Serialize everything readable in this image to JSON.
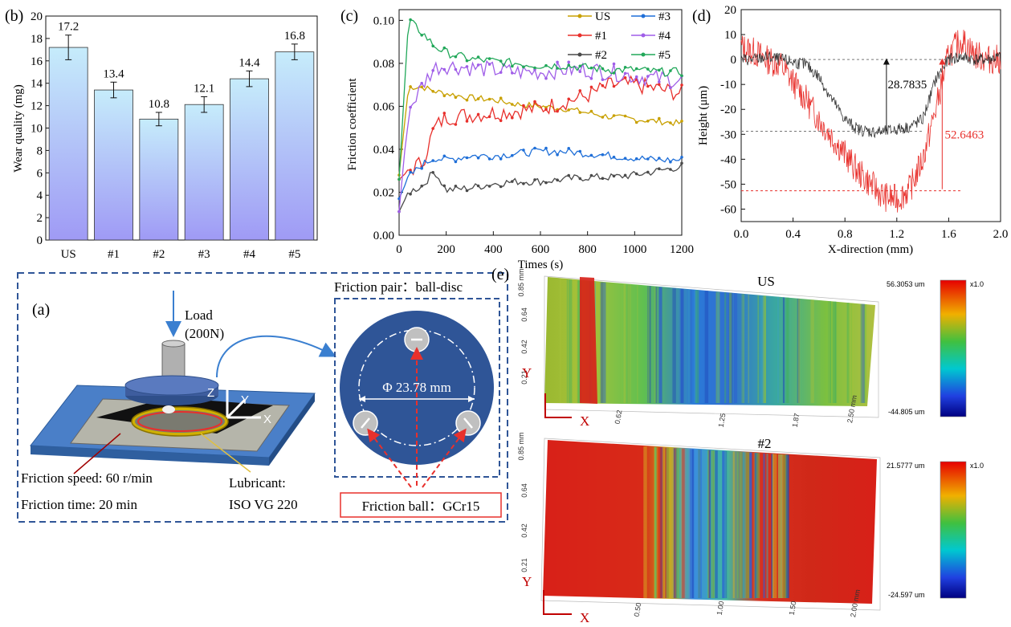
{
  "panel_b": {
    "label": "(b)",
    "ylabel": "Wear quality (mg)",
    "yticks": [
      "0",
      "2",
      "4",
      "6",
      "8",
      "10",
      "12",
      "14",
      "16",
      "18",
      "20"
    ]
  },
  "panel_c": {
    "label": "(c)",
    "xlabel": "Times (s)",
    "ylabel": "Friction coefficient",
    "xticks": [
      "0",
      "200",
      "400",
      "600",
      "800",
      "1000",
      "1200"
    ],
    "yticks": [
      "0.00",
      "0.02",
      "0.04",
      "0.06",
      "0.08",
      "0.10"
    ],
    "legend": [
      "US",
      "#1",
      "#2",
      "#3",
      "#4",
      "#5"
    ]
  },
  "panel_d": {
    "label": "(d)",
    "xlabel": "X-direction (mm)",
    "ylabel": "Height (μm)",
    "xticks": [
      "0.0",
      "0.4",
      "0.8",
      "1.2",
      "1.6",
      "2.0"
    ],
    "yticks": [
      "20",
      "10",
      "0",
      "-10",
      "-20",
      "-30",
      "-40",
      "-50",
      "-60"
    ],
    "annot_black": "28.7835",
    "annot_red": "52.6463"
  },
  "panel_a": {
    "label": "(a)",
    "load": "Load",
    "load_value": "(200N)",
    "friction_pair": "Friction pair：ball-disc",
    "diameter": "Φ 23.78 mm",
    "speed": "Friction speed: 60 r/min",
    "time": "Friction time: 20 min",
    "lubricant": "Lubricant:",
    "lubricant_value": "ISO VG 220",
    "ball": "Friction ball：GCr15",
    "axis_x": "X",
    "axis_y": "Y",
    "axis_z": "Z"
  },
  "panel_e": {
    "label": "(e)",
    "top_title": "US",
    "top_max": "56.3053 um",
    "top_min": "-44.805 um",
    "top_scale": "x1.0",
    "top_yticks": [
      "0.85 mm",
      "0.64",
      "0.42",
      "0.21"
    ],
    "top_xticks": [
      "0.62",
      "1.25",
      "1.87",
      "2.50 mm"
    ],
    "bottom_title": "#2",
    "bottom_max": "21.5777 um",
    "bottom_min": "-24.597 um",
    "bottom_scale": "x1.0",
    "bottom_yticks": [
      "0.85 mm",
      "0.64",
      "0.42",
      "0.21"
    ],
    "bottom_xticks": [
      "0.50",
      "1.00",
      "1.50",
      "2.00 mm"
    ],
    "axis_x": "X",
    "axis_y": "Y"
  },
  "colors": {
    "bar_top": "#c6ecfb",
    "bar_bottom": "#9f9af5",
    "US": "#c8a000",
    "#1": "#e8302c",
    "#2": "#4a4a4a",
    "#3": "#1f6fd8",
    "#4": "#a05ee8",
    "#5": "#22a85a",
    "disc": "#2f5597",
    "dash_box": "#2f5597"
  },
  "chart_data": [
    {
      "type": "bar",
      "categories": [
        "US",
        "#1",
        "#2",
        "#3",
        "#4",
        "#5"
      ],
      "values": [
        17.2,
        13.4,
        10.8,
        12.1,
        14.4,
        16.8
      ],
      "errors": [
        1.1,
        0.7,
        0.6,
        0.7,
        0.7,
        0.7
      ],
      "labels": [
        "17.2",
        "13.4",
        "10.8",
        "12.1",
        "14.4",
        "16.8"
      ],
      "xlabel": "",
      "ylabel": "Wear quality (mg)",
      "ylim": [
        0,
        20
      ],
      "grid": false
    },
    {
      "type": "line",
      "xlabel": "Times (s)",
      "ylabel": "Friction coefficient",
      "xlim": [
        0,
        1200
      ],
      "ylim": [
        0,
        0.105
      ],
      "legend_position": "top-right",
      "x": [
        0,
        40,
        100,
        150,
        200,
        300,
        400,
        500,
        600,
        700,
        800,
        900,
        1000,
        1100,
        1200
      ],
      "series": [
        {
          "name": "US",
          "values": [
            0.028,
            0.069,
            0.069,
            0.067,
            0.066,
            0.064,
            0.063,
            0.061,
            0.06,
            0.059,
            0.057,
            0.055,
            0.054,
            0.053,
            0.052
          ]
        },
        {
          "name": "#1",
          "values": [
            0.026,
            0.03,
            0.034,
            0.05,
            0.055,
            0.056,
            0.057,
            0.058,
            0.059,
            0.062,
            0.065,
            0.07,
            0.07,
            0.068,
            0.066
          ]
        },
        {
          "name": "#2",
          "values": [
            0.011,
            0.02,
            0.023,
            0.03,
            0.021,
            0.022,
            0.024,
            0.025,
            0.025,
            0.026,
            0.027,
            0.027,
            0.028,
            0.03,
            0.032
          ]
        },
        {
          "name": "#3",
          "values": [
            0.017,
            0.027,
            0.033,
            0.036,
            0.035,
            0.037,
            0.037,
            0.038,
            0.039,
            0.039,
            0.038,
            0.037,
            0.036,
            0.035,
            0.035
          ]
        },
        {
          "name": "#4",
          "values": [
            0.011,
            0.058,
            0.07,
            0.078,
            0.079,
            0.078,
            0.077,
            0.076,
            0.076,
            0.077,
            0.077,
            0.076,
            0.074,
            0.073,
            0.072
          ]
        },
        {
          "name": "#5",
          "values": [
            0.026,
            0.1,
            0.094,
            0.088,
            0.085,
            0.082,
            0.081,
            0.08,
            0.079,
            0.079,
            0.078,
            0.077,
            0.077,
            0.076,
            0.076
          ]
        }
      ]
    },
    {
      "type": "line",
      "xlabel": "X-direction (mm)",
      "ylabel": "Height (μm)",
      "xlim": [
        0,
        2.0
      ],
      "ylim": [
        -65,
        20
      ],
      "x": [
        0.0,
        0.1,
        0.2,
        0.3,
        0.4,
        0.5,
        0.6,
        0.7,
        0.8,
        0.9,
        1.0,
        1.1,
        1.2,
        1.3,
        1.4,
        1.5,
        1.6,
        1.7,
        1.8,
        1.9,
        2.0
      ],
      "series": [
        {
          "values": [
            0,
            0,
            1,
            0,
            -1,
            -2,
            -7,
            -16,
            -24,
            -28,
            -29,
            -29,
            -28,
            -27,
            -24,
            -8,
            0,
            1,
            0,
            0,
            1
          ]
        },
        {
          "values": [
            5,
            3,
            0,
            -2,
            -9,
            -16,
            -24,
            -31,
            -38,
            -45,
            -50,
            -55,
            -56,
            -52,
            -40,
            -20,
            2,
            8,
            2,
            0,
            0
          ]
        }
      ],
      "annotations": [
        "28.7835",
        "52.6463"
      ]
    }
  ]
}
